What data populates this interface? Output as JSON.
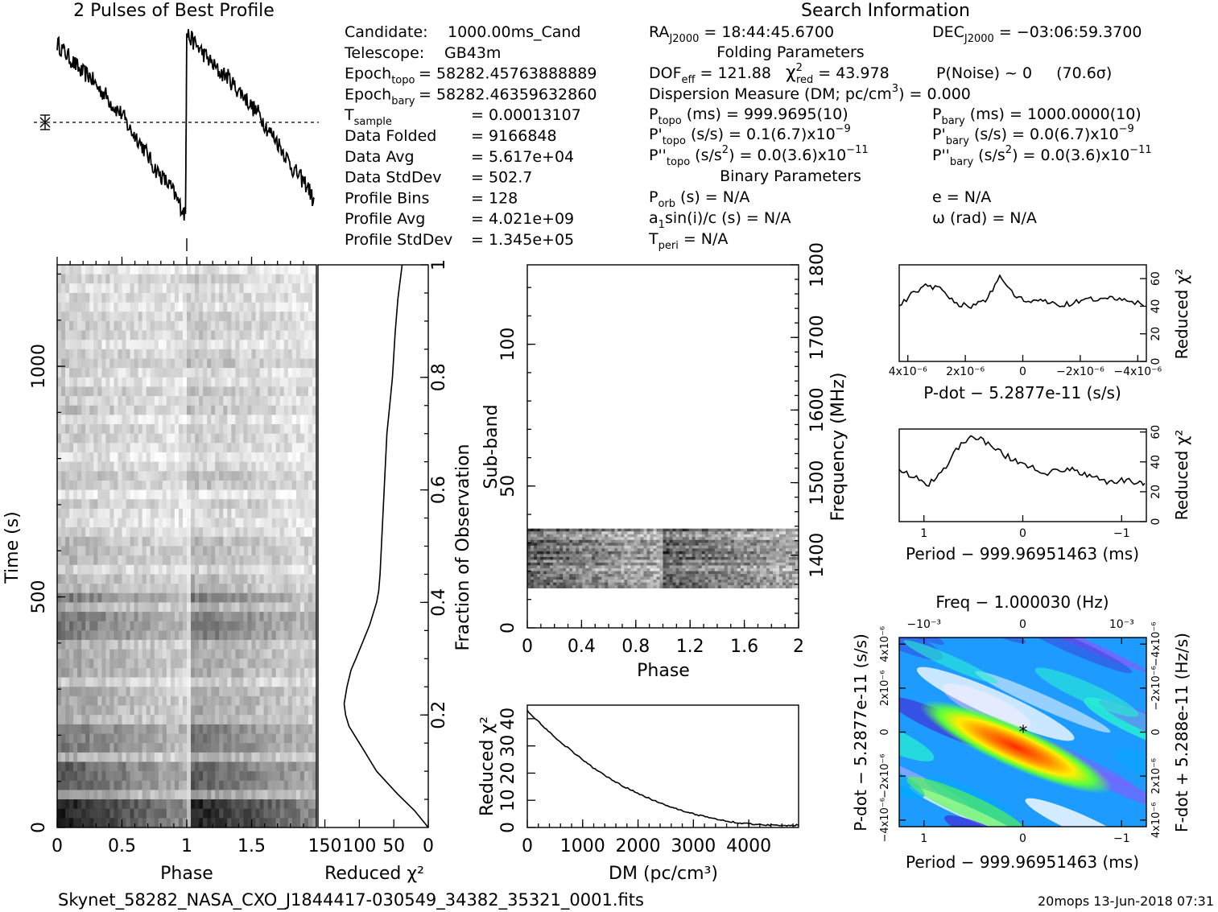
{
  "profile_title": "2 Pulses of Best Profile",
  "search_title": "Search Information",
  "candidate_info": [
    {
      "label": "Candidate:",
      "value": "1000.00ms_Cand"
    },
    {
      "label": "Telescope:",
      "value": "GB43m"
    },
    {
      "label": "Epoch",
      "sub": "topo",
      "value": "= 58282.45763888889"
    },
    {
      "label": "Epoch",
      "sub": "bary",
      "value": "= 58282.46359632860"
    },
    {
      "label": "T",
      "sub": "sample",
      "value": "0.00013107"
    },
    {
      "label": "Data Folded",
      "value": "9166848"
    },
    {
      "label": "Data Avg",
      "value": "5.617e+04"
    },
    {
      "label": "Data StdDev",
      "value": "502.7"
    },
    {
      "label": "Profile Bins",
      "value": "128"
    },
    {
      "label": "Profile Avg",
      "value": "4.021e+09"
    },
    {
      "label": "Profile StdDev",
      "value": "1.345e+05"
    }
  ],
  "search_info": {
    "ra": "= 18:44:45.6700",
    "ra_label": "RA",
    "ra_sub": "J2000",
    "dec": "= −03:06:59.3700",
    "dec_label": "DEC",
    "dec_sub": "J2000",
    "folding_title": "Folding Parameters",
    "dof_label": "DOF",
    "dof_sub": "eff",
    "dof": "= 121.88",
    "chi_label": "χ",
    "chi_sup": "2",
    "chi_sub": "red",
    "chi": "= 43.978",
    "pnoise": "P(Noise) ~ 0",
    "sigma": "(70.6σ)",
    "dm_line": "Dispersion Measure (DM; pc/cm",
    "dm_sup": "3",
    "dm_value": ") = 0.000",
    "ptopo_label": "P",
    "ptopo_sub": "topo",
    "ptopo": "(ms) =  999.9695(10)",
    "pbary_label": "P",
    "pbary_sub": "bary",
    "pbary": "(ms) =  1000.0000(10)",
    "pdtopo_label": "P'",
    "pdtopo_sub": "topo",
    "pdtopo": "(s/s) =  0.1(6.7)x10",
    "pdtopo_exp": "−9",
    "pdbary_label": "P'",
    "pdbary_sub": "bary",
    "pdbary": "(s/s) = 0.0(6.7)x10",
    "pdbary_exp": "−9",
    "pddtopo_label": "P''",
    "pddtopo_sub": "topo",
    "pddtopo": "(s/s",
    "pddtopo_sup": "2",
    "pddtopo_tail": ") = 0.0(3.6)x10",
    "pddtopo_exp": "−11",
    "pddbary_label": "P''",
    "pddbary_sub": "bary",
    "pddbary": "(s/s",
    "pddbary_sup": "2",
    "pddbary_tail": ") = 0.0(3.6)x10",
    "pddbary_exp": "−11",
    "binary_title": "Binary Parameters",
    "porb_label": "P",
    "porb_sub": "orb",
    "porb": "(s) = N/A",
    "e": "e = N/A",
    "a1_label": "a",
    "a1_sub": "1",
    "a1": "sin(i)/c (s) = N/A",
    "omega": "ω (rad) = N/A",
    "tperi_label": "T",
    "tperi_sub": "peri",
    "tperi": "= N/A"
  },
  "footer": {
    "filename": "Skynet_58282_NASA_CXO_J1844417-030549_34382_35321_0001.fits",
    "stamp": "20mops 13-Jun-2018 07:31"
  },
  "chart_data": [
    {
      "id": "profile",
      "type": "line",
      "title": "2 Pulses of Best Profile",
      "x": [
        0,
        0.0625,
        0.125,
        0.1875,
        0.25,
        0.3125,
        0.375,
        0.4375,
        0.5,
        0.5625,
        0.625,
        0.6875,
        0.75,
        0.8125,
        0.875,
        0.9375,
        0.99,
        1.0,
        1.0625,
        1.125,
        1.1875,
        1.25,
        1.3125,
        1.375,
        1.4375,
        1.5,
        1.5625,
        1.625,
        1.6875,
        1.75,
        1.8125,
        1.875,
        1.9375,
        1.99
      ],
      "y": [
        0.95,
        0.9,
        0.85,
        0.8,
        0.78,
        0.72,
        0.68,
        0.62,
        0.58,
        0.5,
        0.45,
        0.38,
        0.3,
        0.25,
        0.2,
        0.12,
        0.05,
        1.0,
        0.95,
        0.9,
        0.85,
        0.8,
        0.78,
        0.72,
        0.68,
        0.62,
        0.58,
        0.5,
        0.45,
        0.38,
        0.3,
        0.25,
        0.2,
        0.1
      ],
      "xlim": [
        0,
        2
      ]
    },
    {
      "id": "time_phase",
      "type": "heatmap",
      "xlabel": "Phase",
      "ylabel": "Time (s)",
      "xlim": [
        0,
        2
      ],
      "ylim": [
        0,
        1220
      ],
      "xticks": [
        "0",
        "0.5",
        "1",
        "1.5"
      ],
      "yticks": [
        "0",
        "500",
        "1000"
      ]
    },
    {
      "id": "chi_vs_fraction",
      "type": "line",
      "xlabel": "Reduced χ²",
      "ylabel": "Fraction of Observation",
      "xlim": [
        160,
        0
      ],
      "ylim": [
        0,
        1
      ],
      "xticks": [
        "150",
        "100",
        "50",
        "0"
      ],
      "yticks": [
        "0.2",
        "0.4",
        "0.6",
        "0.8",
        "1"
      ],
      "x": [
        0,
        20,
        45,
        60,
        75,
        85,
        95,
        105,
        115,
        120,
        122,
        118,
        112,
        105,
        95,
        85,
        80,
        75,
        72,
        70,
        68,
        66,
        64,
        62,
        60,
        56,
        52,
        50,
        48,
        46,
        44,
        42,
        40,
        38
      ],
      "y": [
        0,
        0.03,
        0.06,
        0.08,
        0.1,
        0.12,
        0.14,
        0.16,
        0.18,
        0.2,
        0.22,
        0.25,
        0.28,
        0.3,
        0.33,
        0.36,
        0.38,
        0.4,
        0.42,
        0.45,
        0.5,
        0.55,
        0.6,
        0.65,
        0.7,
        0.75,
        0.8,
        0.84,
        0.88,
        0.91,
        0.94,
        0.96,
        0.98,
        1.0
      ]
    },
    {
      "id": "subband_phase",
      "type": "heatmap",
      "xlabel": "Phase",
      "ylabel": "Sub-band",
      "y2label": "Frequency (MHz)",
      "xlim": [
        0,
        2
      ],
      "ylim": [
        0,
        128
      ],
      "y2lim": [
        1300,
        1800
      ],
      "xticks": [
        "0",
        "0.4",
        "0.8",
        "1.2",
        "1.6",
        "2"
      ],
      "yticks": [
        "0",
        "50",
        "100"
      ],
      "y2ticks": [
        "1400",
        "1500",
        "1600",
        "1700",
        "1800"
      ]
    },
    {
      "id": "dm_curve",
      "type": "line",
      "xlabel": "DM (pc/cm³)",
      "ylabel": "Reduced χ²",
      "xlim": [
        0,
        4900
      ],
      "ylim": [
        0,
        45
      ],
      "xticks": [
        "0",
        "1000",
        "2000",
        "3000",
        "4000"
      ],
      "yticks": [
        "0",
        "10",
        "20",
        "30",
        "40"
      ],
      "x": [
        0,
        250,
        500,
        750,
        1000,
        1250,
        1500,
        1750,
        2000,
        2250,
        2500,
        2750,
        3000,
        3250,
        3500,
        3750,
        4000,
        4250,
        4500,
        4750,
        4900
      ],
      "y": [
        43,
        38,
        33,
        29,
        25,
        21,
        18,
        15,
        12.5,
        10.3,
        8.3,
        6.5,
        5.0,
        3.8,
        2.7,
        1.9,
        1.3,
        1.0,
        0.8,
        0.8,
        0.9
      ]
    },
    {
      "id": "pdot_chi",
      "type": "line",
      "xlabel": "P-dot − 5.2877e-11 (s/s)",
      "ylabel": "Reduced χ²",
      "xlim": [
        4.3e-06,
        -4.3e-06
      ],
      "ylim": [
        0,
        70
      ],
      "xticks": [
        "4x10⁻⁶",
        "2x10⁻⁶",
        "0",
        "−2x10⁻⁶",
        "−4x10⁻⁶"
      ],
      "yticks": [
        "0",
        "20",
        "40",
        "60"
      ],
      "x": [
        4.3e-06,
        3.8e-06,
        3.3e-06,
        2.8e-06,
        2.3e-06,
        1.8e-06,
        1.3e-06,
        8e-07,
        3e-07,
        -2e-07,
        -7e-07,
        -1.2e-06,
        -1.7e-06,
        -2.2e-06,
        -2.7e-06,
        -3.2e-06,
        -3.7e-06,
        -4.3e-06
      ],
      "y": [
        40,
        50,
        55,
        52,
        42,
        40,
        43,
        62,
        48,
        42,
        45,
        40,
        42,
        45,
        44,
        46,
        44,
        40
      ]
    },
    {
      "id": "period_chi",
      "type": "line",
      "xlabel": "Period − 999.96951463 (ms)",
      "ylabel": "Reduced χ²",
      "xlim": [
        1.25,
        -1.25
      ],
      "ylim": [
        0,
        62
      ],
      "xticks": [
        "1",
        "0",
        "−1"
      ],
      "yticks": [
        "0",
        "20",
        "40",
        "60"
      ],
      "x": [
        1.25,
        1.1,
        0.95,
        0.8,
        0.65,
        0.5,
        0.35,
        0.2,
        0.05,
        -0.1,
        -0.25,
        -0.4,
        -0.55,
        -0.7,
        -0.85,
        -1.0,
        -1.15,
        -1.25
      ],
      "y": [
        35,
        30,
        25,
        35,
        50,
        58,
        52,
        45,
        40,
        37,
        32,
        35,
        34,
        30,
        26,
        28,
        26,
        25
      ]
    },
    {
      "id": "ppdot_plane",
      "type": "heatmap",
      "title": "Freq − 1.000030 (Hz)",
      "xlabel": "Period − 999.96951463 (ms)",
      "ylabel": "P-dot − 5.2877e-11 (s/s)",
      "y2label": "F-dot + 5.288e-11 (Hz/s)",
      "xlim": [
        1.25,
        -1.25
      ],
      "ylim": [
        4.3e-06,
        -4.3e-06
      ],
      "xticks": [
        "1",
        "0",
        "−1"
      ],
      "x2ticks": [
        "−10⁻³",
        "0",
        "10⁻³"
      ],
      "yticks": [
        "4x10⁻⁶",
        "2x10⁻⁶",
        "0",
        "−2x10⁻⁶",
        "−4x10⁻⁶"
      ],
      "y2ticks": [
        "−4x10⁻⁶",
        "−2x10⁻⁶",
        "0",
        "2x10⁻⁶",
        "4x10⁻⁶"
      ]
    }
  ]
}
